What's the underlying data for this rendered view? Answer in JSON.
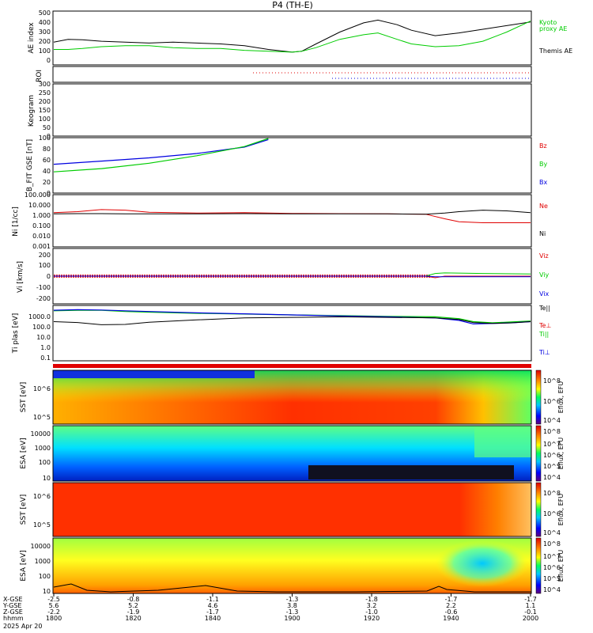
{
  "title": "P4 (TH-E)",
  "colors": {
    "black": "#000000",
    "red": "#e00000",
    "green": "#00cc00",
    "blue": "#0000e0"
  },
  "chart_data": [
    {
      "type": "line",
      "id": "ae",
      "ylabel": "AE index",
      "yticks": [
        "500",
        "400",
        "300",
        "200",
        "100",
        "0"
      ],
      "ylim": [
        -50,
        520
      ],
      "legend": [
        {
          "label": "Kyoto",
          "color": "green"
        },
        {
          "label": "proxy AE",
          "color": "green"
        },
        {
          "label": "Themis AE",
          "color": "black"
        }
      ],
      "x": [
        0,
        0.03,
        0.06,
        0.1,
        0.15,
        0.2,
        0.25,
        0.3,
        0.35,
        0.4,
        0.45,
        0.5,
        0.52,
        0.55,
        0.6,
        0.65,
        0.68,
        0.72,
        0.75,
        0.8,
        0.85,
        0.9,
        0.95,
        1.0
      ],
      "series": [
        {
          "name": "Themis AE",
          "color": "black",
          "values": [
            190,
            220,
            215,
            200,
            190,
            180,
            190,
            180,
            170,
            150,
            110,
            80,
            90,
            170,
            300,
            400,
            430,
            380,
            320,
            260,
            290,
            330,
            370,
            410
          ]
        },
        {
          "name": "Kyoto proxy AE",
          "color": "green",
          "values": [
            110,
            110,
            120,
            140,
            150,
            150,
            130,
            120,
            120,
            100,
            90,
            80,
            90,
            130,
            220,
            270,
            290,
            220,
            170,
            140,
            150,
            200,
            300,
            420
          ]
        }
      ]
    },
    {
      "type": "scatter",
      "id": "roi",
      "ylabel": "ROI"
    },
    {
      "type": "heatmap",
      "id": "keogram",
      "ylabel": "Keogram",
      "yticks": [
        "300",
        "250",
        "200",
        "150",
        "100",
        "50",
        "0"
      ]
    },
    {
      "type": "line",
      "id": "bfit",
      "ylabel": "B_FIT GSE [nT]",
      "yticks": [
        "100",
        "80",
        "60",
        "40",
        "20",
        "0"
      ],
      "ylim": [
        0,
        100
      ],
      "legend": [
        {
          "label": "Bz",
          "color": "red"
        },
        {
          "label": "By",
          "color": "green"
        },
        {
          "label": "Bx",
          "color": "blue"
        }
      ],
      "x": [
        0,
        0.1,
        0.2,
        0.3,
        0.4,
        0.45
      ],
      "series": [
        {
          "name": "Bx",
          "color": "blue",
          "values": [
            52,
            58,
            64,
            72,
            84,
            98
          ]
        },
        {
          "name": "By",
          "color": "green",
          "values": [
            38,
            44,
            54,
            68,
            85,
            100
          ]
        }
      ]
    },
    {
      "type": "line",
      "id": "ni",
      "ylabel": "Ni [1/cc]",
      "yticks": [
        "100.000",
        "10.000",
        "1.000",
        "0.100",
        "0.010",
        "0.001"
      ],
      "legend": [
        {
          "label": "Ne",
          "color": "red"
        },
        {
          "label": "Ni",
          "color": "black"
        }
      ],
      "x": [
        0,
        0.05,
        0.1,
        0.15,
        0.2,
        0.3,
        0.4,
        0.5,
        0.6,
        0.7,
        0.78,
        0.82,
        0.85,
        0.9,
        0.95,
        1.0
      ],
      "series": [
        {
          "name": "Ne",
          "color": "red",
          "values": [
            2.0,
            2.5,
            4.0,
            3.5,
            2.2,
            1.8,
            2.0,
            1.7,
            1.6,
            1.5,
            1.4,
            0.5,
            0.25,
            0.2,
            0.2,
            0.2
          ]
        },
        {
          "name": "Ni",
          "color": "black",
          "values": [
            1.5,
            1.6,
            1.6,
            1.5,
            1.5,
            1.5,
            1.6,
            1.5,
            1.5,
            1.5,
            1.4,
            1.8,
            2.5,
            3.5,
            3.0,
            2.0
          ]
        }
      ]
    },
    {
      "type": "line",
      "id": "vi",
      "ylabel": "Vi [km/s]",
      "yticks": [
        "200",
        "100",
        "0",
        "-100",
        "-200"
      ],
      "ylim": [
        -250,
        250
      ],
      "legend": [
        {
          "label": "Viz",
          "color": "red"
        },
        {
          "label": "Viy",
          "color": "green"
        },
        {
          "label": "Vix",
          "color": "blue"
        }
      ],
      "x": [
        0,
        0.2,
        0.4,
        0.6,
        0.78,
        0.8,
        0.82,
        0.9,
        1.0
      ],
      "series": [
        {
          "name": "Viz",
          "color": "red",
          "values": [
            0,
            0,
            0,
            0,
            0,
            -15,
            0,
            0,
            0
          ]
        },
        {
          "name": "Viy",
          "color": "green",
          "values": [
            0,
            0,
            0,
            0,
            0,
            25,
            30,
            25,
            20
          ]
        },
        {
          "name": "Vix",
          "color": "blue",
          "values": [
            0,
            0,
            0,
            0,
            0,
            -5,
            -5,
            -5,
            -5
          ]
        }
      ]
    },
    {
      "type": "line",
      "id": "ti",
      "ylabel": "Ti plas [eV]",
      "yticks": [
        "1000.0",
        "100.0",
        "10.0",
        "1.0",
        "0.1"
      ],
      "legend": [
        {
          "label": "Te||",
          "color": "black"
        },
        {
          "label": "Te⊥",
          "color": "red"
        },
        {
          "label": "Ti||",
          "color": "green"
        },
        {
          "label": "Ti⊥",
          "color": "blue"
        }
      ],
      "x": [
        0,
        0.05,
        0.1,
        0.15,
        0.2,
        0.3,
        0.4,
        0.5,
        0.6,
        0.7,
        0.8,
        0.85,
        0.88,
        0.92,
        0.96,
        1.0
      ],
      "series": [
        {
          "name": "Ti||",
          "color": "green",
          "values": [
            3500,
            4000,
            4000,
            3000,
            2600,
            2000,
            1700,
            1400,
            1200,
            1000,
            900,
            600,
            300,
            230,
            280,
            350
          ]
        },
        {
          "name": "Ti⊥",
          "color": "blue",
          "values": [
            4000,
            4500,
            4200,
            3500,
            3000,
            2200,
            1800,
            1400,
            1100,
            900,
            700,
            400,
            180,
            200,
            230,
            300
          ]
        },
        {
          "name": "Te||",
          "color": "black",
          "values": [
            300,
            250,
            150,
            160,
            260,
            450,
            700,
            800,
            900,
            800,
            700,
            500,
            250,
            200,
            230,
            300
          ]
        }
      ]
    },
    {
      "type": "heatmap",
      "id": "sst-ions",
      "ylabel": "SST [eV]",
      "yticks": [
        "10^6",
        "10^5"
      ],
      "colorbar_label": "Eflux, EFU",
      "colorbar_ticks": [
        "10^8",
        "10^7",
        "10^6",
        "10^5",
        "10^4"
      ]
    },
    {
      "type": "heatmap",
      "id": "esa-ions",
      "ylabel": "ESA [eV]",
      "yticks": [
        "10000",
        "1000",
        "100",
        "10"
      ],
      "colorbar_label": "Eflux, EFU",
      "colorbar_ticks": [
        "10^8",
        "10^7",
        "10^6",
        "10^5",
        "10^4"
      ]
    },
    {
      "type": "heatmap",
      "id": "sst-electrons",
      "ylabel": "SST [eV]",
      "yticks": [
        "10^6",
        "10^5"
      ],
      "colorbar_label": "Eflux, EFU",
      "colorbar_ticks": [
        "10^8",
        "10^7",
        "10^6",
        "10^5",
        "10^4"
      ]
    },
    {
      "type": "heatmap",
      "id": "esa-electrons",
      "ylabel": "ESA [eV]",
      "yticks": [
        "10000",
        "1000",
        "100",
        "10"
      ],
      "colorbar_label": "Eflux, EFU",
      "colorbar_ticks": [
        "10^8",
        "10^7",
        "10^6",
        "10^5",
        "10^4"
      ]
    }
  ],
  "xaxis": {
    "row_labels": [
      "X-GSE",
      "Y-GSE",
      "Z-GSE",
      "hhmm",
      "2025 Apr 20"
    ],
    "ticks": [
      {
        "x": 0,
        "X": "-2.5",
        "Y": "5.6",
        "Z": "-2.2",
        "hhmm": "1800"
      },
      {
        "x": 0.1667,
        "X": "-0.8",
        "Y": "5.2",
        "Z": "-1.9",
        "hhmm": "1820"
      },
      {
        "x": 0.3333,
        "X": "-1.1",
        "Y": "4.6",
        "Z": "-1.7",
        "hhmm": "1840"
      },
      {
        "x": 0.5,
        "X": "-1.3",
        "Y": "3.8",
        "Z": "-1.3",
        "hhmm": "1900"
      },
      {
        "x": 0.6667,
        "X": "-1.8",
        "Y": "3.2",
        "Z": "-1.0",
        "hhmm": "1920"
      },
      {
        "x": 0.8333,
        "X": "-1.7",
        "Y": "2.2",
        "Z": "-0.6",
        "hhmm": "1940"
      },
      {
        "x": 1,
        "X": "-1.7",
        "Y": "1.1",
        "Z": "-0.1",
        "hhmm": "2000"
      }
    ]
  }
}
